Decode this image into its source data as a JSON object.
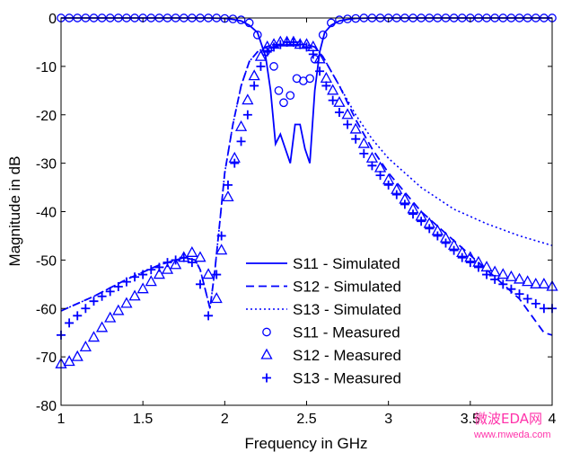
{
  "chart_data": {
    "type": "line",
    "title": "",
    "xlabel": "Frequency in GHz",
    "ylabel": "Magnitude in dB",
    "xlim": [
      1,
      4
    ],
    "ylim": [
      -80,
      0
    ],
    "xticks": [
      1,
      1.5,
      2,
      2.5,
      3,
      3.5,
      4
    ],
    "xtick_labels": [
      "1",
      "1.5",
      "2",
      "2.5",
      "3",
      "3.5",
      "4"
    ],
    "yticks": [
      0,
      -10,
      -20,
      -30,
      -40,
      -50,
      -60,
      -70,
      -80
    ],
    "ytick_labels": [
      "0",
      "-10",
      "-20",
      "-30",
      "-40",
      "-50",
      "-60",
      "-70",
      "-80"
    ],
    "grid": false,
    "legend_position": "center-bottom",
    "color": "#0000ff",
    "series": [
      {
        "name": "S11 - Simulated",
        "style": "solid",
        "x": [
          1.0,
          1.5,
          1.9,
          2.0,
          2.05,
          2.1,
          2.15,
          2.2,
          2.25,
          2.28,
          2.31,
          2.34,
          2.37,
          2.4,
          2.43,
          2.46,
          2.49,
          2.52,
          2.55,
          2.58,
          2.61,
          2.65,
          2.7,
          2.75,
          2.8,
          2.9,
          3.0,
          3.5,
          4.0
        ],
        "y": [
          0,
          0,
          0,
          -0.1,
          -0.3,
          -0.6,
          -1.5,
          -3,
          -8,
          -15,
          -26,
          -24,
          -27,
          -30,
          -22,
          -22,
          -27,
          -30,
          -15,
          -7,
          -3,
          -1.5,
          -0.6,
          -0.3,
          -0.1,
          0,
          0,
          0,
          0
        ]
      },
      {
        "name": "S12 - Simulated",
        "style": "dashed",
        "x": [
          1.0,
          1.2,
          1.4,
          1.6,
          1.75,
          1.82,
          1.85,
          1.88,
          1.91,
          1.94,
          1.97,
          2.0,
          2.05,
          2.1,
          2.15,
          2.2,
          2.25,
          2.3,
          2.4,
          2.5,
          2.55,
          2.6,
          2.65,
          2.7,
          2.8,
          2.9,
          3.0,
          3.2,
          3.4,
          3.6,
          3.8,
          3.95,
          4.0
        ],
        "y": [
          -60.5,
          -57.5,
          -54,
          -51,
          -49.5,
          -50,
          -52,
          -56,
          -60,
          -52,
          -42,
          -32,
          -22,
          -14,
          -9,
          -7,
          -6,
          -5.5,
          -5.5,
          -5.5,
          -6,
          -8,
          -11,
          -14,
          -21,
          -27,
          -32,
          -40,
          -46,
          -52,
          -58,
          -65,
          -65.5
        ]
      },
      {
        "name": "S13 - Simulated",
        "style": "dotted",
        "x": [
          1.0,
          1.2,
          1.4,
          1.6,
          1.75,
          1.82,
          1.85,
          1.88,
          1.91,
          1.94,
          1.97,
          2.0,
          2.05,
          2.1,
          2.15,
          2.2,
          2.25,
          2.3,
          2.4,
          2.5,
          2.55,
          2.6,
          2.65,
          2.7,
          2.8,
          2.9,
          3.0,
          3.2,
          3.4,
          3.6,
          3.8,
          4.0
        ],
        "y": [
          -60.5,
          -57.5,
          -54,
          -51,
          -49.5,
          -50,
          -52,
          -56,
          -60,
          -52,
          -42,
          -32,
          -22,
          -14,
          -9,
          -7,
          -6,
          -5.5,
          -5.5,
          -5.5,
          -6,
          -8,
          -11,
          -14,
          -20,
          -25,
          -29,
          -35,
          -39.5,
          -42.5,
          -45,
          -47
        ]
      },
      {
        "name": "S11 - Measured",
        "style": "circle",
        "x": [
          1.0,
          1.05,
          1.1,
          1.15,
          1.2,
          1.25,
          1.3,
          1.35,
          1.4,
          1.45,
          1.5,
          1.55,
          1.6,
          1.65,
          1.7,
          1.75,
          1.8,
          1.85,
          1.9,
          1.95,
          2.0,
          2.05,
          2.1,
          2.15,
          2.2,
          2.25,
          2.3,
          2.33,
          2.36,
          2.4,
          2.44,
          2.48,
          2.52,
          2.55,
          2.6,
          2.65,
          2.7,
          2.75,
          2.8,
          2.85,
          2.9,
          2.95,
          3.0,
          3.05,
          3.1,
          3.15,
          3.2,
          3.25,
          3.3,
          3.35,
          3.4,
          3.45,
          3.5,
          3.55,
          3.6,
          3.65,
          3.7,
          3.75,
          3.8,
          3.85,
          3.9,
          3.95,
          4.0
        ],
        "y": [
          0,
          0,
          0,
          0,
          0,
          0,
          0,
          0,
          0,
          0,
          0,
          0,
          0,
          0,
          0,
          0,
          0,
          0,
          0,
          0,
          -0.1,
          -0.2,
          -0.4,
          -1,
          -3.5,
          -7,
          -10,
          -15,
          -17.5,
          -16,
          -12.5,
          -13,
          -12.5,
          -8.5,
          -3.5,
          -1,
          -0.4,
          -0.2,
          -0.1,
          0,
          0,
          0,
          0,
          0,
          0,
          0,
          0,
          0,
          0,
          0,
          0,
          0,
          0,
          0,
          0,
          0,
          0,
          0,
          0,
          0,
          0,
          0,
          0
        ]
      },
      {
        "name": "S12 - Measured",
        "style": "triangle",
        "x": [
          1.0,
          1.05,
          1.1,
          1.15,
          1.2,
          1.25,
          1.3,
          1.35,
          1.4,
          1.45,
          1.5,
          1.55,
          1.6,
          1.65,
          1.7,
          1.75,
          1.8,
          1.85,
          1.9,
          1.95,
          1.98,
          2.02,
          2.06,
          2.1,
          2.14,
          2.18,
          2.22,
          2.26,
          2.3,
          2.34,
          2.38,
          2.42,
          2.46,
          2.5,
          2.54,
          2.58,
          2.62,
          2.66,
          2.7,
          2.75,
          2.8,
          2.85,
          2.9,
          2.95,
          3.0,
          3.05,
          3.1,
          3.15,
          3.2,
          3.25,
          3.3,
          3.35,
          3.4,
          3.45,
          3.5,
          3.55,
          3.6,
          3.65,
          3.7,
          3.75,
          3.8,
          3.85,
          3.9,
          3.95,
          4.0
        ],
        "y": [
          -71.5,
          -71,
          -70,
          -68,
          -66,
          -64,
          -62,
          -60.5,
          -59,
          -57.5,
          -56,
          -54.5,
          -53,
          -52,
          -51,
          -49.5,
          -48.5,
          -49.5,
          -53,
          -58,
          -48,
          -37,
          -29,
          -22.5,
          -17,
          -12,
          -8,
          -6,
          -5.5,
          -5,
          -5,
          -5,
          -5.5,
          -5.5,
          -6,
          -8.5,
          -12.5,
          -15,
          -17.5,
          -20,
          -23,
          -26,
          -29,
          -31,
          -33.5,
          -35.5,
          -37.5,
          -39.5,
          -41,
          -42.5,
          -44,
          -45.5,
          -47,
          -48.5,
          -49.5,
          -50.5,
          -51.5,
          -52.5,
          -53,
          -53.5,
          -54,
          -54.5,
          -55,
          -55,
          -55.5
        ]
      },
      {
        "name": "S13 - Measured",
        "style": "plus",
        "x": [
          1.0,
          1.05,
          1.1,
          1.15,
          1.2,
          1.25,
          1.3,
          1.35,
          1.4,
          1.45,
          1.5,
          1.55,
          1.6,
          1.65,
          1.7,
          1.75,
          1.8,
          1.85,
          1.9,
          1.95,
          1.98,
          2.02,
          2.06,
          2.1,
          2.14,
          2.18,
          2.22,
          2.26,
          2.3,
          2.34,
          2.38,
          2.42,
          2.46,
          2.5,
          2.54,
          2.58,
          2.62,
          2.66,
          2.7,
          2.75,
          2.8,
          2.85,
          2.9,
          2.95,
          3.0,
          3.05,
          3.1,
          3.15,
          3.2,
          3.25,
          3.3,
          3.35,
          3.4,
          3.45,
          3.5,
          3.55,
          3.6,
          3.65,
          3.7,
          3.75,
          3.8,
          3.85,
          3.9,
          3.95,
          4.0
        ],
        "y": [
          -65.5,
          -63,
          -61.5,
          -60,
          -58.5,
          -57.5,
          -56.5,
          -55.5,
          -54.5,
          -53.5,
          -53,
          -52,
          -51.5,
          -50.5,
          -50,
          -49.5,
          -50.5,
          -55,
          -61.5,
          -53,
          -45,
          -34.5,
          -30,
          -25.5,
          -20,
          -14,
          -10,
          -7,
          -6,
          -5.5,
          -5,
          -5,
          -5.5,
          -6,
          -7.5,
          -11,
          -14,
          -17,
          -19.5,
          -22,
          -25,
          -28,
          -30.5,
          -32.5,
          -34.5,
          -36.5,
          -38.5,
          -40.5,
          -42,
          -43.5,
          -45,
          -46.5,
          -48,
          -49.5,
          -50.5,
          -51.5,
          -53,
          -54,
          -55,
          -56,
          -57,
          -58,
          -59,
          -60,
          -60
        ]
      }
    ]
  },
  "watermark": {
    "text": "微波EDA网",
    "url": "www.mweda.com"
  }
}
